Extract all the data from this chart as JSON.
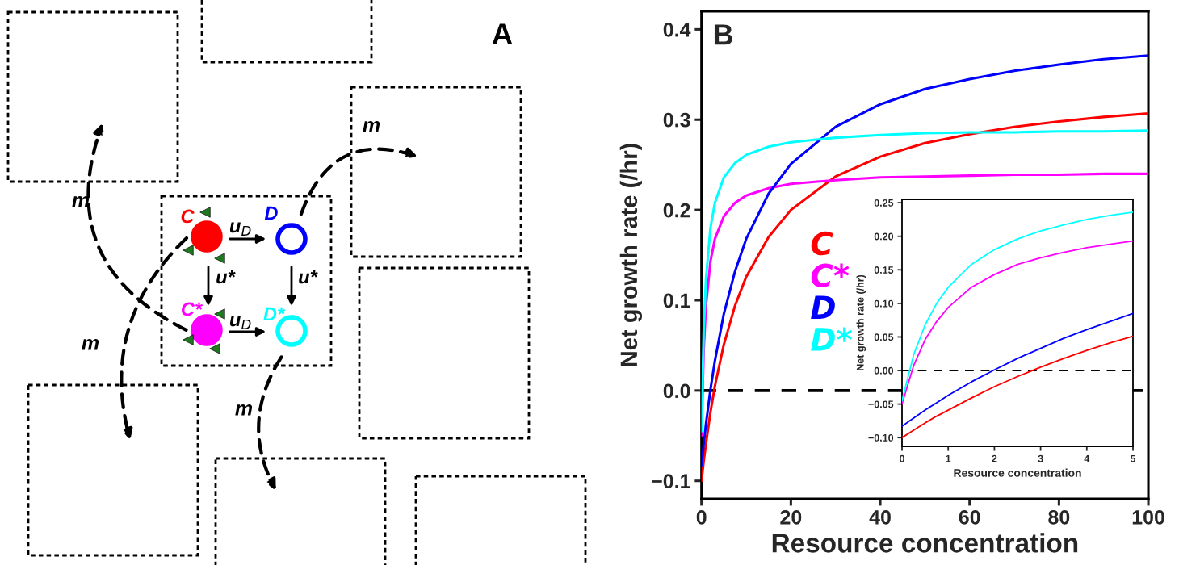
{
  "chart_data": [
    {
      "type": "other",
      "annotations": [
        "A",
        "m",
        "m",
        "m",
        "m",
        "C",
        "D",
        "C*",
        "D*",
        "u$_{D}$",
        "u$_{D}$",
        "u*",
        "u*"
      ]
    },
    {
      "type": "line",
      "annotations": [
        "B"
      ],
      "xlabel": "Resource concentration",
      "ylabel": "Net growth rate (/hr)",
      "x": [
        0,
        0.5,
        1,
        2,
        3,
        5,
        7.5,
        10,
        15,
        20,
        30,
        40,
        50,
        60,
        70,
        80,
        90,
        100
      ],
      "series": [
        {
          "name": "C",
          "color": "#ff0000",
          "values": [
            -0.1,
            -0.078,
            -0.059,
            -0.024,
            0.005,
            0.051,
            0.094,
            0.126,
            0.17,
            0.2,
            0.237,
            0.259,
            0.274,
            0.284,
            0.292,
            0.298,
            0.303,
            0.307
          ]
        },
        {
          "name": "C*",
          "color": "#ff00ff",
          "values": [
            -0.05,
            0.046,
            0.094,
            0.143,
            0.168,
            0.193,
            0.208,
            0.216,
            0.224,
            0.229,
            0.233,
            0.236,
            0.237,
            0.238,
            0.239,
            0.239,
            0.24,
            0.24
          ]
        },
        {
          "name": "D",
          "color": "#0000ff",
          "values": [
            -0.083,
            -0.059,
            -0.037,
            0.001,
            0.033,
            0.085,
            0.132,
            0.168,
            0.218,
            0.251,
            0.292,
            0.317,
            0.334,
            0.345,
            0.354,
            0.361,
            0.367,
            0.371
          ]
        },
        {
          "name": "D*",
          "color": "#00ffff",
          "values": [
            -0.045,
            0.068,
            0.124,
            0.18,
            0.208,
            0.236,
            0.252,
            0.261,
            0.27,
            0.275,
            0.28,
            0.283,
            0.285,
            0.286,
            0.286,
            0.287,
            0.287,
            0.288
          ]
        }
      ],
      "xlim": [
        0,
        100
      ],
      "xticks": [
        0,
        20,
        40,
        60,
        80,
        100
      ],
      "ylim": [
        -0.12,
        0.42
      ],
      "yticks": [
        {
          "value": -0.1,
          "label": "−0.1"
        },
        {
          "value": 0,
          "label": "0.0"
        },
        {
          "value": 0.1,
          "label": "0.1"
        },
        {
          "value": 0.2,
          "label": "0.2"
        },
        {
          "value": 0.3,
          "label": "0.3"
        },
        {
          "value": 0.4,
          "label": "0.4"
        }
      ],
      "ref_lines": [
        {
          "axis": "y",
          "value": 0,
          "color": "#000000",
          "line_style": "dashed"
        }
      ],
      "legend": "center left",
      "grid": false
    },
    {
      "type": "line",
      "xlabel": "Resource concentration",
      "ylabel": "Net growth rate (/hr)",
      "x": [
        0,
        0.25,
        0.5,
        0.75,
        1,
        1.5,
        2,
        2.5,
        3,
        3.5,
        4,
        4.5,
        5
      ],
      "series": [
        {
          "color": "#ff0000",
          "values": [
            -0.1,
            -0.089,
            -0.078,
            -0.068,
            -0.059,
            -0.041,
            -0.024,
            -0.009,
            0.005,
            0.018,
            0.03,
            0.041,
            0.051
          ]
        },
        {
          "color": "#ff00ff",
          "values": [
            -0.05,
            0.007,
            0.046,
            0.073,
            0.094,
            0.124,
            0.143,
            0.158,
            0.168,
            0.176,
            0.183,
            0.188,
            0.193
          ]
        },
        {
          "color": "#0000ff",
          "values": [
            -0.083,
            -0.071,
            -0.059,
            -0.048,
            -0.037,
            -0.017,
            0.001,
            0.018,
            0.033,
            0.048,
            0.061,
            0.073,
            0.085
          ]
        },
        {
          "color": "#00ffff",
          "values": [
            -0.045,
            0.023,
            0.068,
            0.1,
            0.124,
            0.158,
            0.18,
            0.196,
            0.208,
            0.217,
            0.225,
            0.231,
            0.236
          ]
        }
      ],
      "xlim": [
        0,
        5
      ],
      "xticks": [
        0,
        1,
        2,
        3,
        4,
        5
      ],
      "ylim": [
        -0.113,
        0.255
      ],
      "yticks": [
        {
          "value": -0.1,
          "label": "−0.10"
        },
        {
          "value": -0.05,
          "label": "−0.05"
        },
        {
          "value": 0,
          "label": "0.00"
        },
        {
          "value": 0.05,
          "label": "0.05"
        },
        {
          "value": 0.1,
          "label": "0.10"
        },
        {
          "value": 0.15,
          "label": "0.15"
        },
        {
          "value": 0.2,
          "label": "0.20"
        },
        {
          "value": 0.25,
          "label": "0.25"
        }
      ],
      "ref_lines": [
        {
          "axis": "y",
          "value": 0,
          "color": "#000000",
          "line_style": "dashed"
        }
      ],
      "grid": false
    }
  ]
}
